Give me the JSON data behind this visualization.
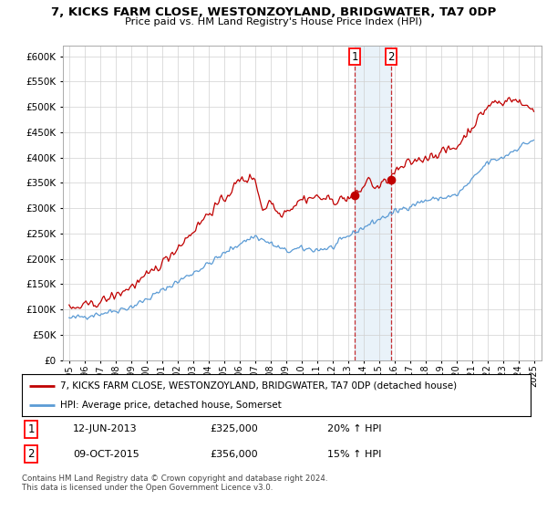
{
  "title": "7, KICKS FARM CLOSE, WESTONZOYLAND, BRIDGWATER, TA7 0DP",
  "subtitle": "Price paid vs. HM Land Registry's House Price Index (HPI)",
  "legend_line1": "7, KICKS FARM CLOSE, WESTONZOYLAND, BRIDGWATER, TA7 0DP (detached house)",
  "legend_line2": "HPI: Average price, detached house, Somerset",
  "sale1_date": "12-JUN-2013",
  "sale1_price": "£325,000",
  "sale1_hpi": "20% ↑ HPI",
  "sale2_date": "09-OCT-2015",
  "sale2_price": "£356,000",
  "sale2_hpi": "15% ↑ HPI",
  "hpi_color": "#5b9bd5",
  "price_color": "#c00000",
  "sale1_x": 2013.44,
  "sale1_y": 325000,
  "sale2_x": 2015.77,
  "sale2_y": 356000,
  "copyright": "Contains HM Land Registry data © Crown copyright and database right 2024.\nThis data is licensed under the Open Government Licence v3.0.",
  "ylim": [
    0,
    620000
  ],
  "yticks": [
    0,
    50000,
    100000,
    150000,
    200000,
    250000,
    300000,
    350000,
    400000,
    450000,
    500000,
    550000,
    600000
  ],
  "xlim_start": 1994.6,
  "xlim_end": 2025.5,
  "background_color": "#ffffff",
  "grid_color": "#d0d0d0"
}
